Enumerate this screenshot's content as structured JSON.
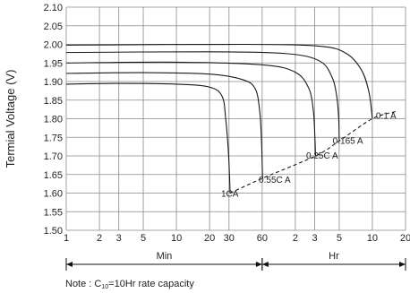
{
  "chart_data": {
    "type": "line",
    "ylabel": "Termial Voltage (V)",
    "ylim": [
      1.5,
      2.1
    ],
    "y_ticks": [
      "1.50",
      "1.55",
      "1.60",
      "1.65",
      "1.70",
      "1.75",
      "1.80",
      "1.85",
      "1.90",
      "1.95",
      "2.00",
      "2.05",
      "2.10"
    ],
    "x_axis": "log",
    "x_ticks": [
      {
        "label": "1",
        "minutes": 1
      },
      {
        "label": "2",
        "minutes": 2
      },
      {
        "label": "3",
        "minutes": 3
      },
      {
        "label": "5",
        "minutes": 5
      },
      {
        "label": "10",
        "minutes": 10
      },
      {
        "label": "20",
        "minutes": 20
      },
      {
        "label": "30",
        "minutes": 30
      },
      {
        "label": "60",
        "minutes": 60
      },
      {
        "label": "2",
        "minutes": 120
      },
      {
        "label": "3",
        "minutes": 180
      },
      {
        "label": "5",
        "minutes": 300
      },
      {
        "label": "10",
        "minutes": 600
      },
      {
        "label": "20",
        "minutes": 1200
      }
    ],
    "x_segments": [
      {
        "label": "Min",
        "from_minutes": 1,
        "to_minutes": 60
      },
      {
        "label": "Hr",
        "from_minutes": 60,
        "to_minutes": 1200
      }
    ],
    "grid": true,
    "series": [
      {
        "name": "1C A",
        "label_display": "1CA",
        "points": [
          [
            1,
            1.893
          ],
          [
            3,
            1.895
          ],
          [
            10,
            1.893
          ],
          [
            20,
            1.885
          ],
          [
            26,
            1.86
          ],
          [
            28,
            1.8
          ],
          [
            29.5,
            1.72
          ],
          [
            30.3,
            1.65
          ],
          [
            30.7,
            1.6
          ]
        ]
      },
      {
        "name": "0.55C A",
        "label_display": "0.55C A",
        "points": [
          [
            1,
            1.922
          ],
          [
            5,
            1.924
          ],
          [
            20,
            1.92
          ],
          [
            40,
            1.905
          ],
          [
            52,
            1.88
          ],
          [
            57,
            1.82
          ],
          [
            59,
            1.75
          ],
          [
            60,
            1.68
          ],
          [
            60.5,
            1.64
          ]
        ]
      },
      {
        "name": "0.25C A",
        "label_display": "0.25C A",
        "points": [
          [
            1,
            1.95
          ],
          [
            10,
            1.952
          ],
          [
            60,
            1.945
          ],
          [
            120,
            1.925
          ],
          [
            160,
            1.88
          ],
          [
            175,
            1.82
          ],
          [
            180,
            1.76
          ],
          [
            183,
            1.7
          ]
        ]
      },
      {
        "name": "0.165 A",
        "label_display": "0.165 A",
        "points": [
          [
            1,
            1.978
          ],
          [
            20,
            1.98
          ],
          [
            100,
            1.975
          ],
          [
            200,
            1.955
          ],
          [
            260,
            1.91
          ],
          [
            285,
            1.86
          ],
          [
            297,
            1.8
          ],
          [
            300,
            1.74
          ]
        ]
      },
      {
        "name": "0.1 A",
        "label_display": "0.1 A",
        "points": [
          [
            1,
            1.998
          ],
          [
            40,
            2.0
          ],
          [
            200,
            1.995
          ],
          [
            350,
            1.975
          ],
          [
            480,
            1.93
          ],
          [
            560,
            1.87
          ],
          [
            600,
            1.8
          ]
        ]
      }
    ],
    "endpoint_line": {
      "points": [
        [
          30.7,
          1.6
        ],
        [
          60.5,
          1.64
        ],
        [
          183,
          1.7
        ],
        [
          300,
          1.74
        ],
        [
          600,
          1.8
        ],
        [
          1000,
          1.82
        ]
      ]
    },
    "note": {
      "prefix": "Note :  C",
      "subscript": "10",
      "suffix": "=10Hr  rate  capacity"
    }
  }
}
